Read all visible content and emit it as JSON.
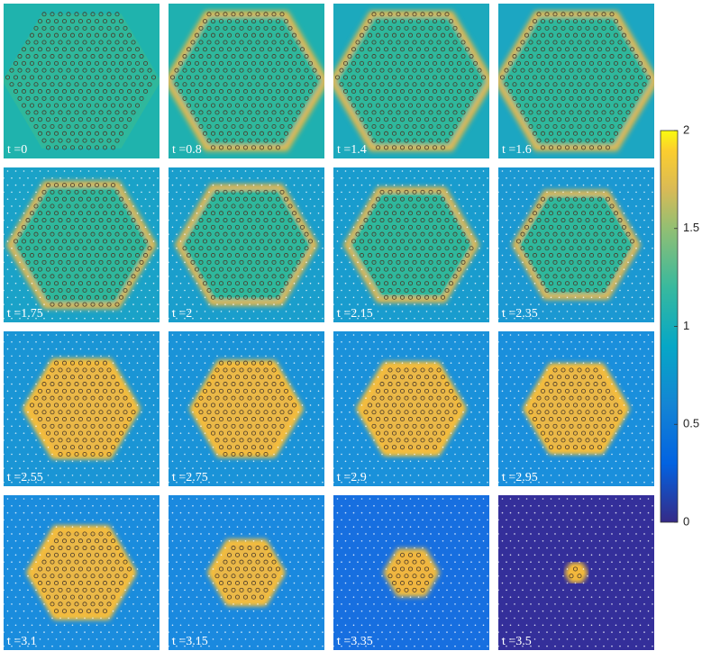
{
  "chart_data": {
    "type": "heatmap-grid",
    "panels": [
      {
        "label": "t =0"
      },
      {
        "label": "t =0.8"
      },
      {
        "label": "t =1.4"
      },
      {
        "label": "t =1.6"
      },
      {
        "label": "t =1.75"
      },
      {
        "label": "t =2"
      },
      {
        "label": "t =2.15"
      },
      {
        "label": "t =2.35"
      },
      {
        "label": "t =2.55"
      },
      {
        "label": "t =2.75"
      },
      {
        "label": "t =2.9"
      },
      {
        "label": "t =2.95"
      },
      {
        "label": "t =3.1"
      },
      {
        "label": "t =3.15"
      },
      {
        "label": "t =3.35"
      },
      {
        "label": "t =3.5"
      }
    ],
    "colorbar": {
      "ylim": [
        0,
        2
      ],
      "yticks": [
        0,
        0.5,
        1,
        1.5,
        2
      ]
    }
  }
}
